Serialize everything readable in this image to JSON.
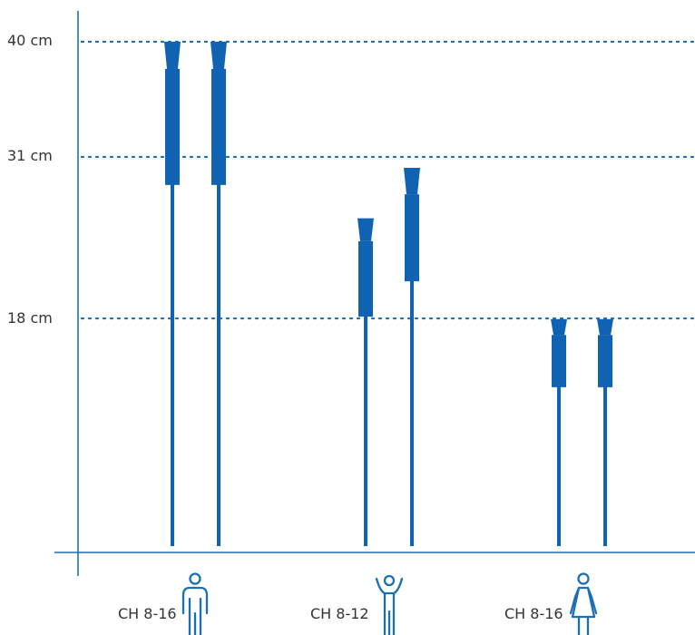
{
  "reference_lines": [
    {
      "label": "40 cm",
      "value_cm": 40
    },
    {
      "label": "31 cm",
      "value_cm": 31
    },
    {
      "label": "18 cm",
      "value_cm": 18
    }
  ],
  "groups": [
    {
      "label": "CH 8-16",
      "icon": "male-icon",
      "catheter_lengths_cm": [
        40,
        40
      ]
    },
    {
      "label": "CH 8-12",
      "icon": "child-icon",
      "catheter_lengths_cm": [
        26,
        30
      ]
    },
    {
      "label": "CH 8-16",
      "icon": "female-icon",
      "catheter_lengths_cm": [
        18,
        18
      ]
    }
  ],
  "colors": {
    "catheter": "#0f63b2",
    "lines": "#1c6fb5",
    "text": "#333333"
  }
}
